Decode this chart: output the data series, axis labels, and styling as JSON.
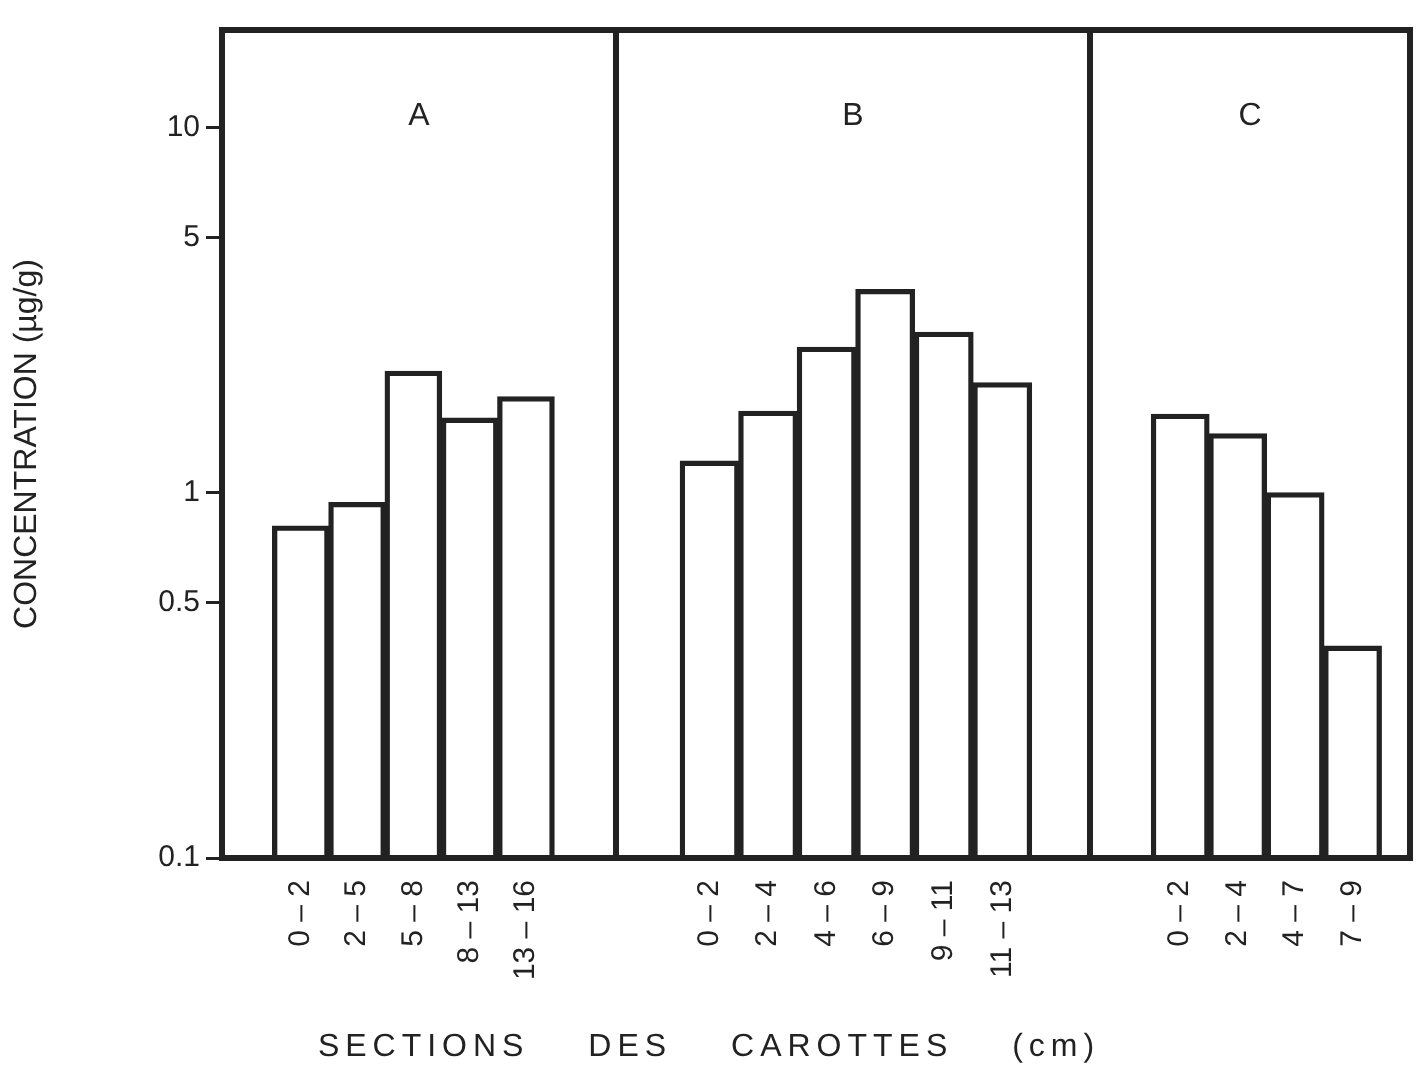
{
  "chart_data": [
    {
      "type": "bar",
      "title": "A",
      "ylabel": "CONCENTRATION (µg/g)",
      "categories": [
        "0 – 2",
        "2 – 5",
        "5 – 8",
        "8 – 13",
        "13 – 16"
      ],
      "values": [
        0.81,
        0.94,
        2.15,
        1.6,
        1.83
      ],
      "color": "#222222",
      "log": true,
      "ylim": [
        0.1,
        18.5
      ],
      "yticks": [
        0.1,
        0.5,
        1,
        5,
        10
      ]
    },
    {
      "type": "bar",
      "title": "B",
      "xlabel": "SECTIONS DES CAROTTES (cm)",
      "categories": [
        "0 – 2",
        "2 – 4",
        "4 – 6",
        "6 – 9",
        "9 – 11",
        "11 – 13"
      ],
      "values": [
        1.22,
        1.67,
        2.5,
        3.6,
        2.75,
        2.0
      ],
      "color": "#222222",
      "log": true,
      "ylim": [
        0.1,
        18.5
      ],
      "tick_labels": "x"
    },
    {
      "type": "bar",
      "title": "C",
      "categories": [
        "0 – 2",
        "2 – 4",
        "4 – 7",
        "7 – 9"
      ],
      "values": [
        1.64,
        1.45,
        1.0,
        0.38
      ],
      "color": "#222222",
      "log": true,
      "ylim": [
        0.1,
        18.5
      ],
      "tick_labels": "x"
    }
  ]
}
